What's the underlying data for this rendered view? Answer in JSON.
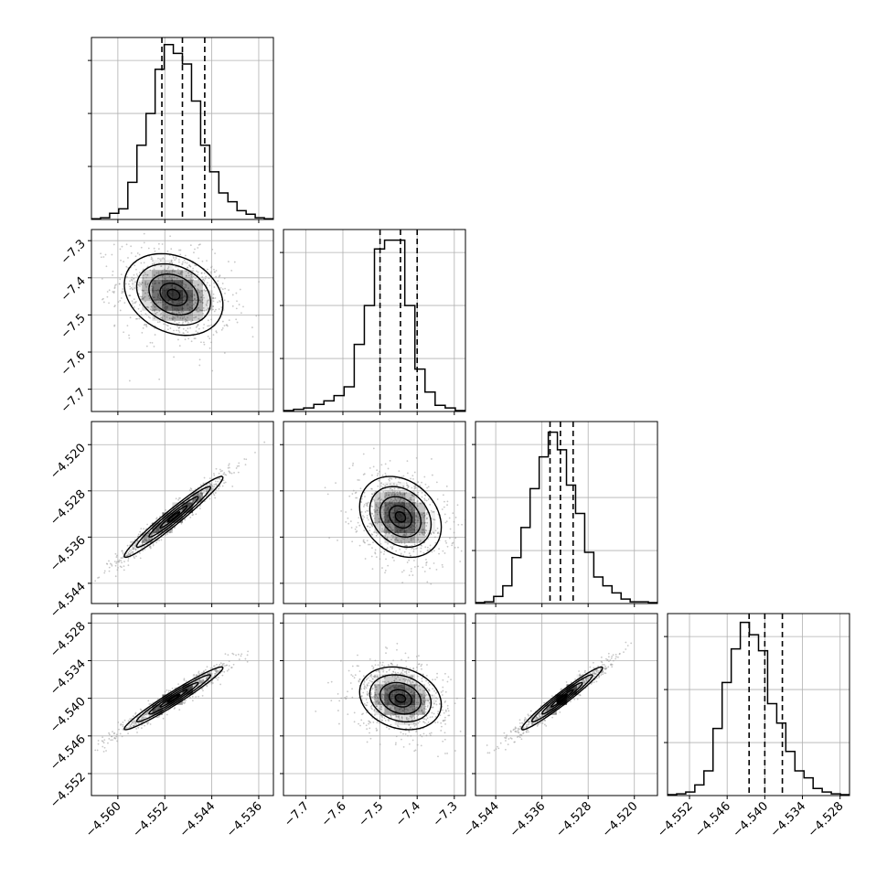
{
  "chart_data": {
    "type": "corner",
    "parameters": [
      {
        "index": 0,
        "range": [
          -4.5645,
          -4.5335
        ],
        "ticks": [
          -4.56,
          -4.552,
          -4.544,
          -4.536
        ],
        "tick_labels": [
          "−4.560",
          "−4.552",
          "−4.544",
          "−4.536"
        ],
        "quantiles": [
          -4.5525,
          -4.549,
          -4.5452
        ]
      },
      {
        "index": 1,
        "range": [
          -7.76,
          -7.27
        ],
        "ticks": [
          -7.7,
          -7.6,
          -7.5,
          -7.4,
          -7.3
        ],
        "tick_labels": [
          "−7.7",
          "−7.6",
          "−7.5",
          "−7.4",
          "−7.3"
        ],
        "quantiles": [
          -7.5,
          -7.445,
          -7.4
        ]
      },
      {
        "index": 2,
        "range": [
          -4.5475,
          -4.516
        ],
        "ticks": [
          -4.544,
          -4.536,
          -4.528,
          -4.52
        ],
        "tick_labels": [
          "−4.544",
          "−4.536",
          "−4.528",
          "−4.520"
        ],
        "quantiles": [
          -4.5346,
          -4.5328,
          -4.5306
        ]
      },
      {
        "index": 3,
        "range": [
          -4.5555,
          -4.5265
        ],
        "ticks": [
          -4.552,
          -4.546,
          -4.54,
          -4.534,
          -4.528
        ],
        "tick_labels": [
          "−4.552",
          "−4.546",
          "−4.540",
          "−4.534",
          "−4.528"
        ],
        "quantiles": [
          -4.5425,
          -4.54,
          -4.5372
        ]
      }
    ],
    "histograms": [
      [
        0.004,
        0.01,
        0.035,
        0.06,
        0.21,
        0.42,
        0.6,
        0.85,
        0.99,
        0.94,
        0.88,
        0.67,
        0.42,
        0.27,
        0.15,
        0.1,
        0.05,
        0.03,
        0.01,
        0.004
      ],
      [
        0.005,
        0.012,
        0.02,
        0.04,
        0.06,
        0.09,
        0.14,
        0.38,
        0.6,
        0.92,
        0.97,
        0.97,
        0.6,
        0.24,
        0.11,
        0.035,
        0.02,
        0.005
      ],
      [
        0.005,
        0.01,
        0.04,
        0.1,
        0.26,
        0.43,
        0.65,
        0.83,
        0.97,
        0.87,
        0.67,
        0.51,
        0.29,
        0.15,
        0.1,
        0.06,
        0.025,
        0.01,
        0.01,
        0.005
      ],
      [
        0.005,
        0.01,
        0.02,
        0.06,
        0.14,
        0.38,
        0.64,
        0.83,
        0.98,
        0.91,
        0.82,
        0.52,
        0.41,
        0.25,
        0.14,
        0.1,
        0.04,
        0.02,
        0.01,
        0.005
      ]
    ],
    "hist_ylim": [
      0,
      1.03
    ],
    "hist_yticks": [
      0.3,
      0.6,
      0.9
    ],
    "pairs": [
      {
        "row": 1,
        "col": 0,
        "mean": [
          -4.5505,
          -7.445
        ],
        "std": [
          0.0042,
          0.055
        ],
        "corr": -0.25,
        "contour_scales": [
          0.25,
          0.55,
          1.0,
          1.5,
          2.0
        ]
      },
      {
        "row": 2,
        "col": 0,
        "mean": [
          -4.5505,
          -4.5325
        ],
        "std": [
          0.0042,
          0.0035
        ],
        "corr": 0.97,
        "contour_scales": [
          0.25,
          0.55,
          1.0,
          1.5,
          2.0
        ]
      },
      {
        "row": 2,
        "col": 1,
        "mean": [
          -7.445,
          -4.5325
        ],
        "std": [
          0.055,
          0.0035
        ],
        "corr": -0.25,
        "contour_scales": [
          0.25,
          0.55,
          1.0,
          1.5,
          2.0
        ]
      },
      {
        "row": 3,
        "col": 0,
        "mean": [
          -4.5505,
          -4.54
        ],
        "std": [
          0.0042,
          0.0025
        ],
        "corr": 0.97,
        "contour_scales": [
          0.25,
          0.55,
          1.0,
          1.5,
          2.0
        ]
      },
      {
        "row": 3,
        "col": 1,
        "mean": [
          -7.445,
          -4.54
        ],
        "std": [
          0.055,
          0.0025
        ],
        "corr": -0.2,
        "contour_scales": [
          0.25,
          0.55,
          1.0,
          1.5,
          2.0
        ]
      },
      {
        "row": 3,
        "col": 2,
        "mean": [
          -4.5325,
          -4.54
        ],
        "std": [
          0.0035,
          0.0025
        ],
        "corr": 0.97,
        "contour_scales": [
          0.25,
          0.55,
          1.0,
          1.5,
          2.0
        ]
      }
    ],
    "grid": true,
    "colors": {
      "line": "#000000",
      "grid": "#b0b0b0",
      "scatter": "#9a9a9a",
      "density": "#000000"
    }
  }
}
